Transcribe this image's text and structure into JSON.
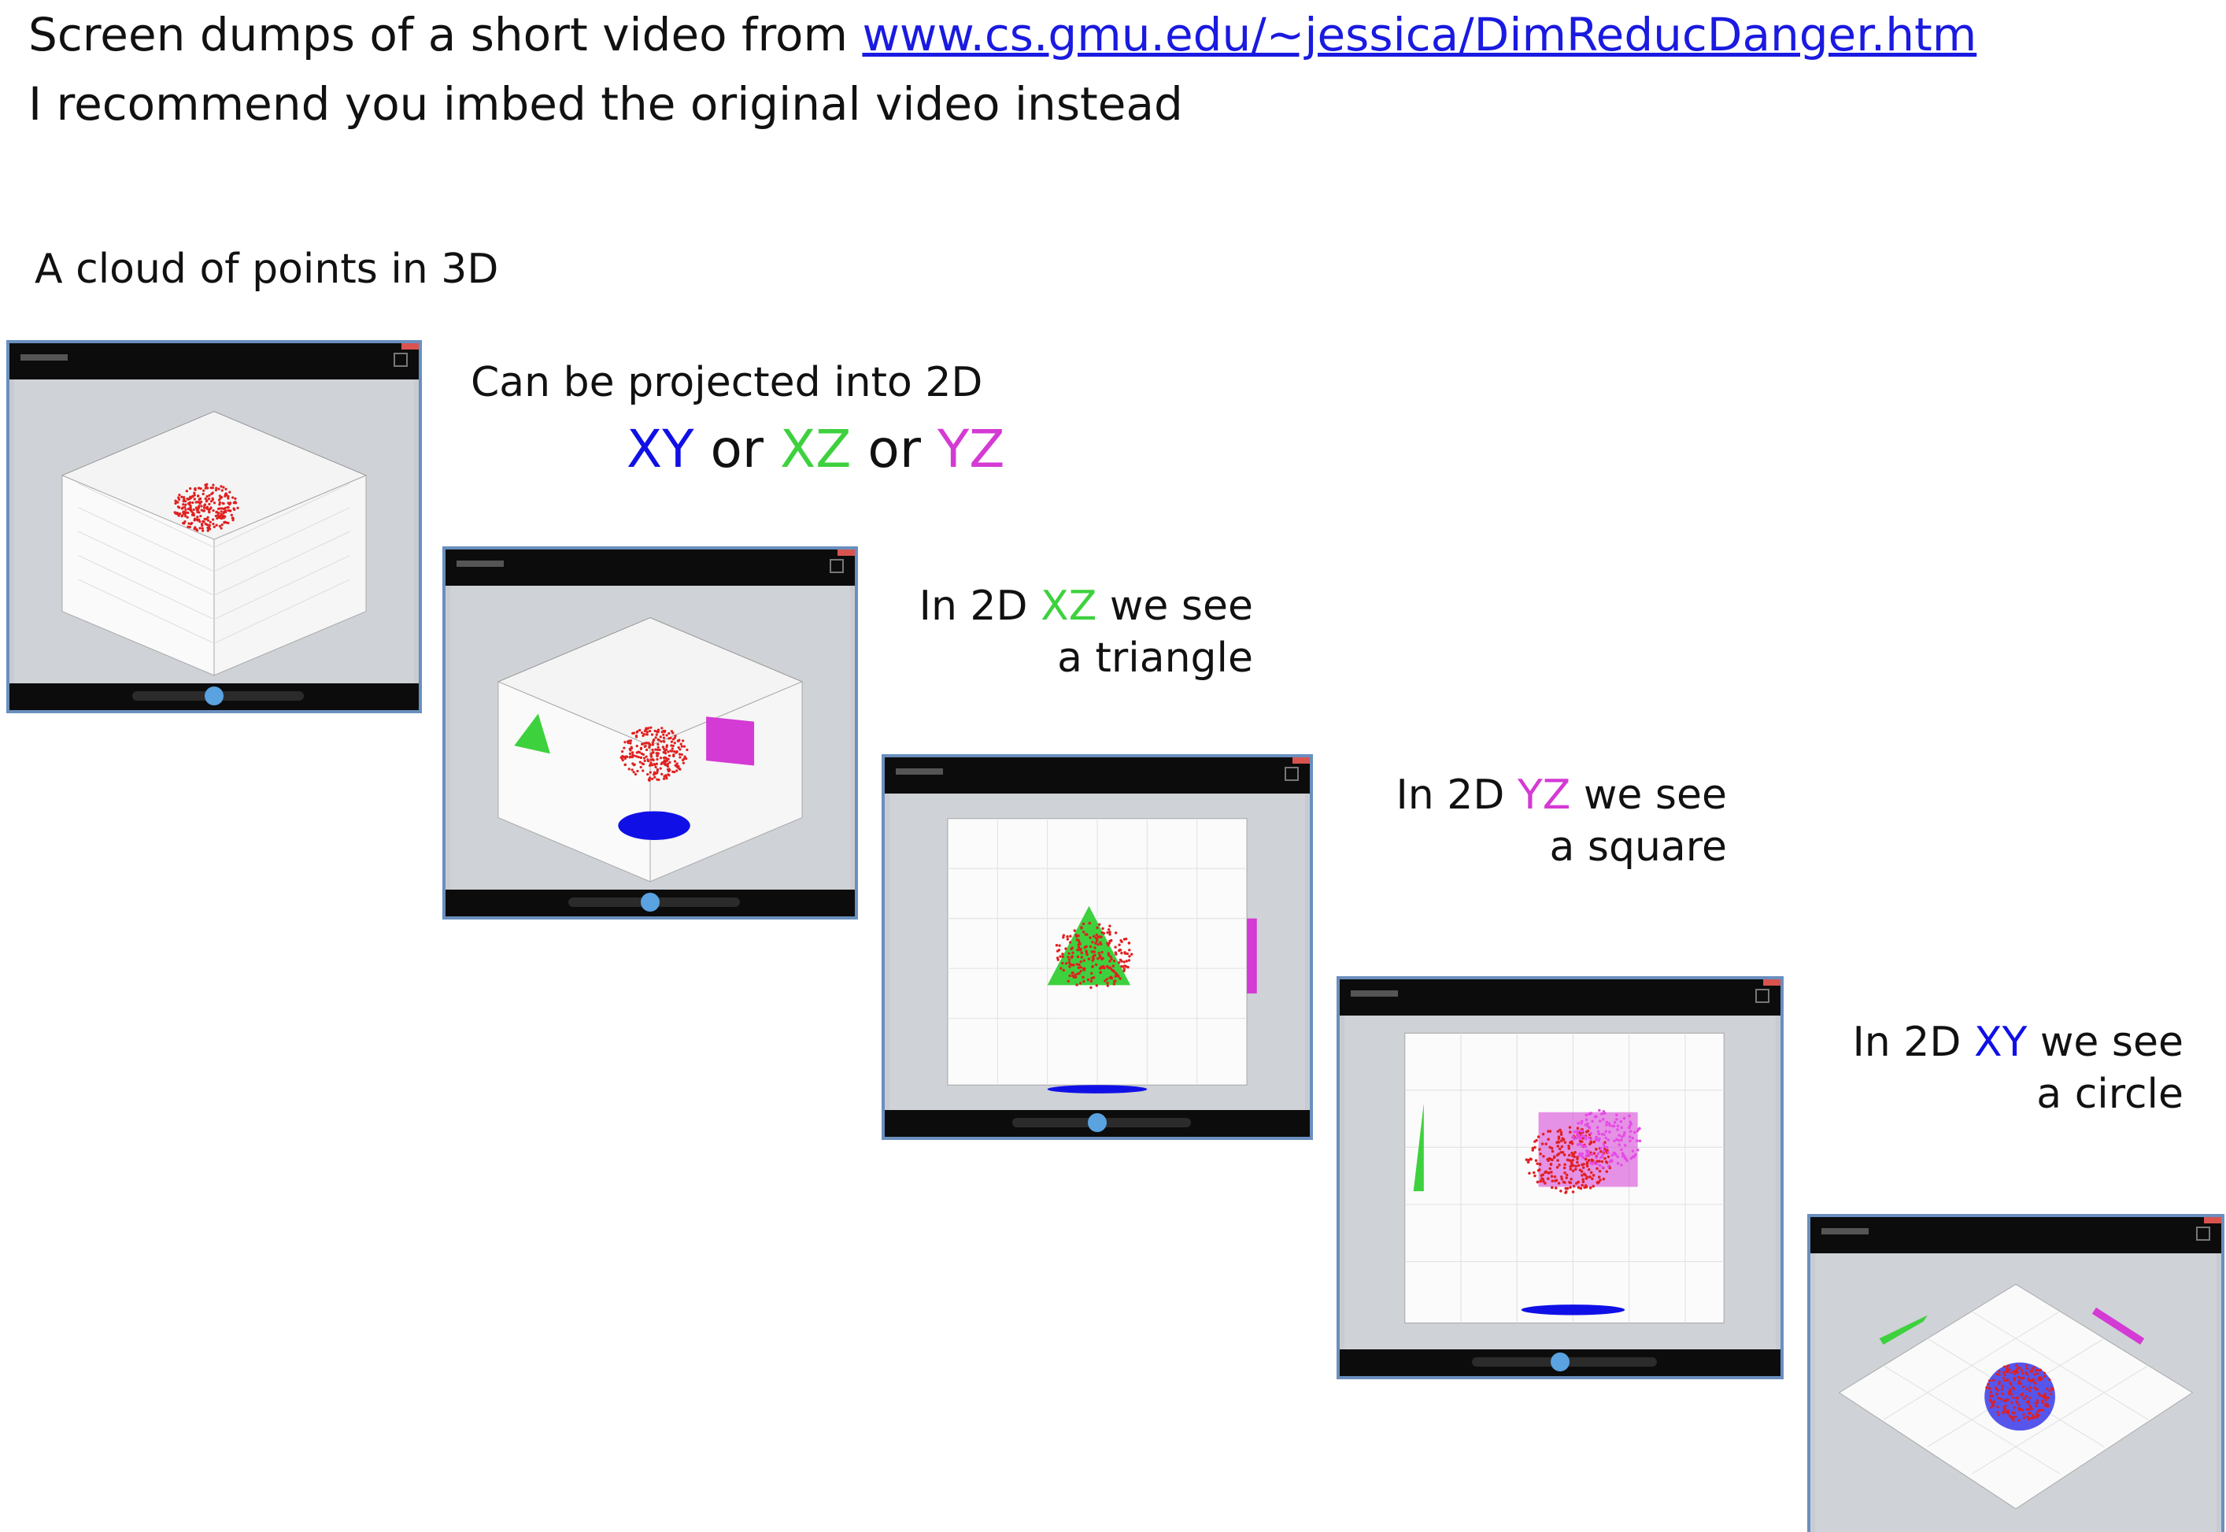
{
  "header": {
    "line1_prefix": "Screen dumps of a short video from ",
    "link_text": "www.cs.gmu.edu/~jessica/DimReducDanger.htm",
    "line2": "I recommend you imbed the original video instead"
  },
  "captions": {
    "cloud": "A cloud of points in 3D",
    "projected": "Can be projected into 2D",
    "proj_xy": "XY",
    "proj_or1": " or ",
    "proj_xz": "XZ",
    "proj_or2": " or ",
    "proj_yz": "YZ",
    "xz_prefix": "In 2D ",
    "xz_label": "XZ",
    "xz_suffix": " we see",
    "xz_shape": "a triangle",
    "yz_prefix": "In 2D ",
    "yz_label": "YZ",
    "yz_suffix": " we see",
    "yz_shape": "a square",
    "xy_prefix": "In 2D ",
    "xy_label": "XY",
    "xy_suffix": " we see",
    "xy_shape": "a circle"
  },
  "colors": {
    "xy": "#1010e6",
    "xz": "#3ed13e",
    "yz": "#d43ad4",
    "cloud": "#e02020"
  }
}
